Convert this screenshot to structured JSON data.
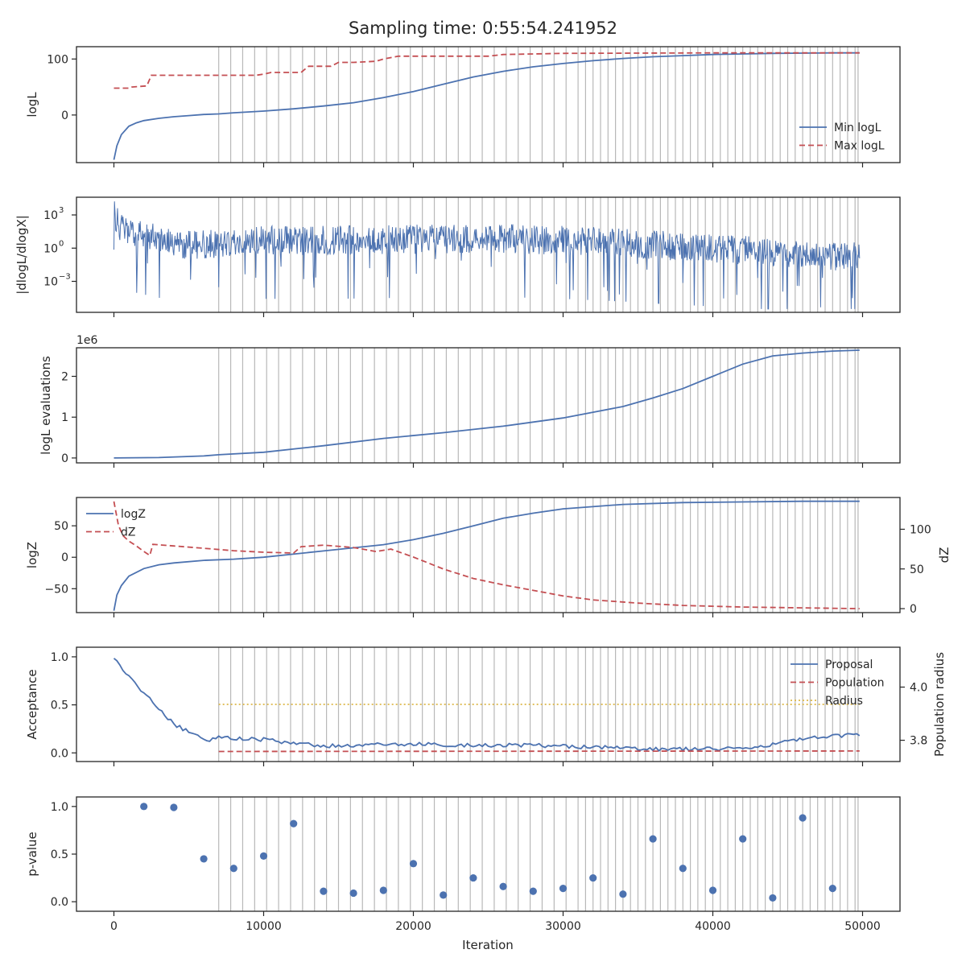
{
  "title": "Sampling time: 0:55:54.241952",
  "x_axis": {
    "label": "Iteration",
    "range": [
      -2500,
      52500
    ],
    "ticks": [
      0,
      10000,
      20000,
      30000,
      40000,
      50000
    ],
    "tick_labels": [
      "0",
      "10000",
      "20000",
      "30000",
      "40000",
      "50000"
    ]
  },
  "colors": {
    "blue": "#4c72b0",
    "red": "#c44e52",
    "yellow": "#ddb84a",
    "vline": "#b8b8b8"
  },
  "chart_data": [
    {
      "id": "logl",
      "type": "line",
      "ylabel": "logL",
      "ylim": [
        -85,
        122
      ],
      "yticks": [
        0,
        100
      ],
      "ytick_labels": [
        "0",
        "100"
      ],
      "legend": {
        "placement": "lower-right"
      },
      "series": [
        {
          "name": "Min logL",
          "color": "#4c72b0",
          "dash": "solid",
          "x": [
            0,
            200,
            500,
            1000,
            1500,
            2000,
            3000,
            4000,
            5000,
            6000,
            7000,
            8000,
            10000,
            12000,
            14000,
            16000,
            18000,
            20000,
            22000,
            24000,
            26000,
            28000,
            30000,
            32000,
            34000,
            36000,
            38000,
            40000,
            42000,
            44000,
            46000,
            48000,
            49800
          ],
          "y": [
            -80,
            -55,
            -35,
            -20,
            -14,
            -10,
            -6,
            -3,
            -1,
            1,
            2,
            4,
            7,
            11,
            16,
            22,
            31,
            42,
            55,
            68,
            78,
            86,
            92,
            97,
            101,
            104,
            106,
            108,
            109,
            110,
            110.5,
            111,
            111
          ]
        },
        {
          "name": "Max logL",
          "color": "#c44e52",
          "dash": "dashed",
          "x": [
            0,
            1000,
            1200,
            2200,
            2500,
            6000,
            9500,
            10000,
            10500,
            12500,
            13000,
            14500,
            15000,
            16000,
            17500,
            18000,
            19000,
            25000,
            26000,
            28000,
            30000,
            35000,
            40000,
            45000,
            49800
          ],
          "y": [
            48,
            48,
            50,
            52,
            71,
            71,
            71,
            73,
            76,
            76,
            87,
            87,
            94,
            94,
            96,
            100,
            105,
            105,
            108,
            109,
            110,
            110.5,
            111,
            111,
            111
          ]
        }
      ]
    },
    {
      "id": "dlogl",
      "type": "line",
      "ylabel": "|dlogL/dlogX|",
      "yscale": "log",
      "ylim": [
        -5.8,
        4.6
      ],
      "yticks": [
        -3,
        0,
        3
      ],
      "ytick_labels": [
        "10",
        "10",
        "10"
      ],
      "ytick_exponents": [
        "−3",
        "0",
        "3"
      ],
      "series": [
        {
          "name": "",
          "color": "#4c72b0",
          "dash": "solid",
          "x": [
            0,
            200,
            500,
            1000,
            2000,
            3000,
            4000,
            5000,
            6000,
            8000,
            10000,
            15000,
            20000,
            25000,
            30000,
            35000,
            40000,
            45000,
            49800
          ],
          "y": [
            3.3,
            2.5,
            1.8,
            1.4,
            1.1,
            0.8,
            0.5,
            0.3,
            0.3,
            0.5,
            0.7,
            0.7,
            0.8,
            0.9,
            0.7,
            0.4,
            0.0,
            -0.5,
            -0.8
          ],
          "spread": 2.2
        }
      ]
    },
    {
      "id": "evals",
      "type": "line",
      "ylabel": "logL evaluations",
      "ylim": [
        -0.12,
        2.7
      ],
      "yticks": [
        0,
        1,
        2
      ],
      "ytick_labels": [
        "0",
        "1",
        "2"
      ],
      "offset_text": "1e6",
      "series": [
        {
          "name": "",
          "color": "#4c72b0",
          "dash": "solid",
          "x": [
            0,
            3000,
            6000,
            7000,
            10000,
            14000,
            18000,
            22000,
            26000,
            30000,
            34000,
            36000,
            38000,
            40000,
            42000,
            44000,
            46000,
            48000,
            49800
          ],
          "y": [
            0,
            0.01,
            0.05,
            0.08,
            0.14,
            0.3,
            0.48,
            0.62,
            0.78,
            0.98,
            1.26,
            1.47,
            1.7,
            2.0,
            2.3,
            2.5,
            2.57,
            2.62,
            2.64
          ]
        }
      ]
    },
    {
      "id": "logz",
      "type": "line",
      "ylabel": "logZ",
      "ylim": [
        -88,
        95
      ],
      "yticks": [
        -50,
        0,
        50
      ],
      "ytick_labels": [
        "−50",
        "0",
        "50"
      ],
      "y2label": "dZ",
      "y2lim": [
        -5,
        140
      ],
      "y2ticks": [
        0,
        50,
        100
      ],
      "y2tick_labels": [
        "0",
        "50",
        "100"
      ],
      "legend": {
        "placement": "upper-left"
      },
      "series": [
        {
          "name": "logZ",
          "color": "#4c72b0",
          "dash": "solid",
          "axis": "left",
          "x": [
            0,
            200,
            500,
            1000,
            2000,
            3000,
            4000,
            6000,
            8000,
            10000,
            14000,
            18000,
            20000,
            22000,
            24000,
            26000,
            28000,
            30000,
            34000,
            38000,
            42000,
            46000,
            49800
          ],
          "y": [
            -85,
            -60,
            -45,
            -30,
            -18,
            -12,
            -9,
            -5,
            -3,
            0,
            10,
            20,
            28,
            38,
            50,
            62,
            70,
            77,
            84,
            87,
            88,
            89,
            89
          ]
        },
        {
          "name": "dZ",
          "color": "#c44e52",
          "dash": "dashed",
          "axis": "right",
          "x": [
            0,
            300,
            600,
            1000,
            1500,
            2000,
            2400,
            2600,
            4000,
            6000,
            8000,
            10000,
            12000,
            12500,
            14000,
            16000,
            17500,
            18500,
            20000,
            22000,
            24000,
            26000,
            28000,
            30000,
            32000,
            35000,
            38000,
            42000,
            46000,
            49800
          ],
          "y": [
            135,
            105,
            92,
            85,
            79,
            72,
            67,
            81,
            79,
            76,
            73,
            71,
            70,
            78,
            80,
            77,
            72,
            75,
            65,
            50,
            38,
            30,
            23,
            16,
            11,
            7,
            4,
            2,
            1,
            0
          ]
        }
      ]
    },
    {
      "id": "acceptance",
      "type": "line",
      "ylabel": "Acceptance",
      "ylim": [
        -0.09,
        1.1
      ],
      "yticks": [
        0,
        0.5,
        1
      ],
      "ytick_labels": [
        "0.0",
        "0.5",
        "1.0"
      ],
      "y2label": "Population radius",
      "y2lim": [
        3.72,
        4.15
      ],
      "y2ticks": [
        3.8,
        4.0
      ],
      "y2tick_labels": [
        "3.8",
        "4.0"
      ],
      "legend": {
        "placement": "upper-right"
      },
      "series": [
        {
          "name": "Proposal",
          "color": "#4c72b0",
          "dash": "solid",
          "axis": "left",
          "x": [
            0,
            300,
            600,
            1000,
            1500,
            2000,
            2500,
            3000,
            3500,
            4000,
            4500,
            5000,
            5500,
            6000,
            6500,
            7000,
            8000,
            10000,
            12000,
            14000,
            16000,
            20000,
            24000,
            28000,
            32000,
            36000,
            40000,
            43000,
            45000,
            47000,
            49800
          ],
          "y": [
            0.98,
            0.93,
            0.87,
            0.8,
            0.7,
            0.62,
            0.55,
            0.45,
            0.38,
            0.3,
            0.26,
            0.22,
            0.18,
            0.15,
            0.13,
            0.18,
            0.15,
            0.14,
            0.1,
            0.07,
            0.08,
            0.09,
            0.08,
            0.08,
            0.06,
            0.04,
            0.04,
            0.06,
            0.12,
            0.16,
            0.19
          ],
          "noise": 0.02
        },
        {
          "name": "Population",
          "color": "#c44e52",
          "dash": "dashed",
          "axis": "left",
          "x": [
            7000,
            49800
          ],
          "y": [
            0.015,
            0.02
          ]
        },
        {
          "name": "Radius",
          "color": "#ddb84a",
          "dash": "dotted",
          "axis": "right",
          "x": [
            7000,
            49800
          ],
          "y": [
            3.935,
            3.935
          ]
        }
      ]
    },
    {
      "id": "pvalue",
      "type": "scatter",
      "ylabel": "p-value",
      "ylim": [
        -0.1,
        1.1
      ],
      "yticks": [
        0,
        0.5,
        1
      ],
      "ytick_labels": [
        "0.0",
        "0.5",
        "1.0"
      ],
      "series": [
        {
          "name": "",
          "color": "#4c72b0",
          "x": [
            2000,
            4000,
            6000,
            8000,
            10000,
            12000,
            14000,
            16000,
            18000,
            20000,
            22000,
            24000,
            26000,
            28000,
            30000,
            32000,
            34000,
            36000,
            38000,
            40000,
            42000,
            44000,
            46000,
            48000
          ],
          "y": [
            1.0,
            0.99,
            0.45,
            0.35,
            0.48,
            0.82,
            0.11,
            0.09,
            0.12,
            0.4,
            0.07,
            0.25,
            0.16,
            0.11,
            0.14,
            0.25,
            0.08,
            0.66,
            0.35,
            0.12,
            0.66,
            0.04,
            0.88,
            0.14
          ]
        }
      ]
    }
  ],
  "vlines": [
    7000,
    7800,
    8600,
    9400,
    10200,
    11000,
    11800,
    12600,
    13400,
    14200,
    15000,
    15800,
    16600,
    17400,
    18200,
    19000,
    19800,
    20600,
    21400,
    22200,
    23000,
    23800,
    24600,
    25400,
    26200,
    27000,
    27800,
    28600,
    29400,
    30200,
    31000,
    31500,
    32000,
    32500,
    33000,
    33500,
    34000,
    34500,
    35000,
    35500,
    36000,
    36500,
    37000,
    37500,
    38000,
    38500,
    39000,
    39500,
    40000,
    40500,
    41000,
    41500,
    42000,
    42500,
    43000,
    43500,
    44000,
    44500,
    45000,
    45500,
    46000,
    46500,
    47000,
    47500,
    48000,
    48500,
    49000,
    49500,
    49700
  ]
}
